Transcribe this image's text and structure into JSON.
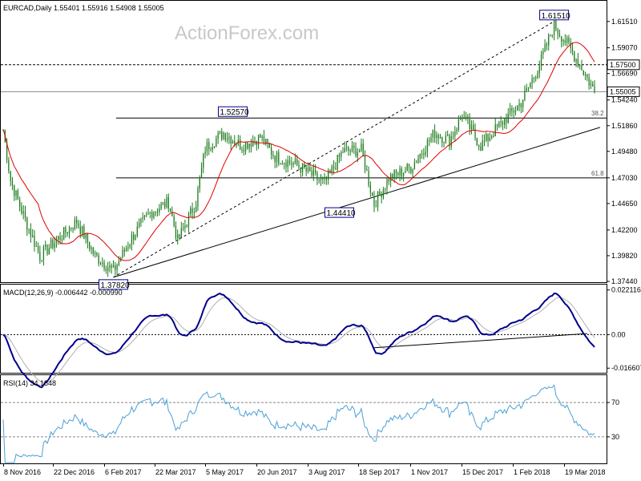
{
  "header": {
    "symbol_line": "EURCAD,Daily  1.55401 1.55916 1.54908 1.55005",
    "watermark": "ActionForex.com"
  },
  "colors": {
    "candle": "#1a7a1a",
    "ma": "#e00000",
    "macd": "#00008b",
    "signal": "#b0b0b0",
    "rsi": "#4aa0d8",
    "trend": "#000000"
  },
  "chart_data": [
    {
      "type": "candlestick",
      "name": "price",
      "yticks": [
        "1.61510",
        "1.59070",
        "1.56690",
        "1.54240",
        "1.51860",
        "1.49480",
        "1.47030",
        "1.44650",
        "1.42200",
        "1.39820",
        "1.37440"
      ],
      "ylim": [
        1.3744,
        1.632
      ],
      "current_price": "1.55005",
      "dashed_level": "1.57500",
      "annotations": [
        {
          "label": "1.37820",
          "date_index": 60,
          "value": 1.3782
        },
        {
          "label": "1.52570",
          "date_index": 125,
          "value": 1.5257
        },
        {
          "label": "1.44410",
          "date_index": 190,
          "value": 1.4441
        },
        {
          "label": "1.61510",
          "date_index": 300,
          "value": 1.6151
        }
      ],
      "fib_levels": [
        {
          "label": "38.2",
          "value": 1.5257
        },
        {
          "label": "61.8",
          "value": 1.4703
        }
      ],
      "xticks": [
        "8 Nov 2016",
        "22 Dec 2016",
        "6 Feb 2017",
        "22 Mar 2017",
        "5 May 2017",
        "20 Jun 2017",
        "3 Aug 2017",
        "18 Sep 2017",
        "1 Nov 2017",
        "15 Dec 2017",
        "1 Feb 2018",
        "19 Mar 2018"
      ],
      "close_anchors": [
        [
          0,
          1.515
        ],
        [
          4,
          1.468
        ],
        [
          10,
          1.44
        ],
        [
          20,
          1.398
        ],
        [
          30,
          1.414
        ],
        [
          40,
          1.43
        ],
        [
          50,
          1.398
        ],
        [
          60,
          1.384
        ],
        [
          70,
          1.415
        ],
        [
          80,
          1.438
        ],
        [
          90,
          1.448
        ],
        [
          95,
          1.412
        ],
        [
          105,
          1.448
        ],
        [
          110,
          1.498
        ],
        [
          120,
          1.512
        ],
        [
          130,
          1.5
        ],
        [
          140,
          1.508
        ],
        [
          148,
          1.49
        ],
        [
          160,
          1.482
        ],
        [
          175,
          1.465
        ],
        [
          185,
          1.495
        ],
        [
          195,
          1.496
        ],
        [
          202,
          1.446
        ],
        [
          210,
          1.47
        ],
        [
          222,
          1.48
        ],
        [
          235,
          1.512
        ],
        [
          243,
          1.505
        ],
        [
          250,
          1.528
        ],
        [
          260,
          1.5
        ],
        [
          272,
          1.522
        ],
        [
          282,
          1.54
        ],
        [
          292,
          1.575
        ],
        [
          300,
          1.612
        ],
        [
          308,
          1.592
        ],
        [
          315,
          1.572
        ],
        [
          322,
          1.55
        ]
      ]
    },
    {
      "type": "line",
      "name": "MACD",
      "label": "MACD(12,26,9) -0.006442 -0.000990",
      "yticks": [
        "0.022116",
        "0.00",
        "-0.016607"
      ],
      "ylim": [
        -0.0185,
        0.0236
      ]
    },
    {
      "type": "line",
      "name": "RSI",
      "label": "RSI(14) 34.1848",
      "yticks": [
        "70",
        "30"
      ],
      "ylim": [
        0,
        100
      ]
    }
  ]
}
